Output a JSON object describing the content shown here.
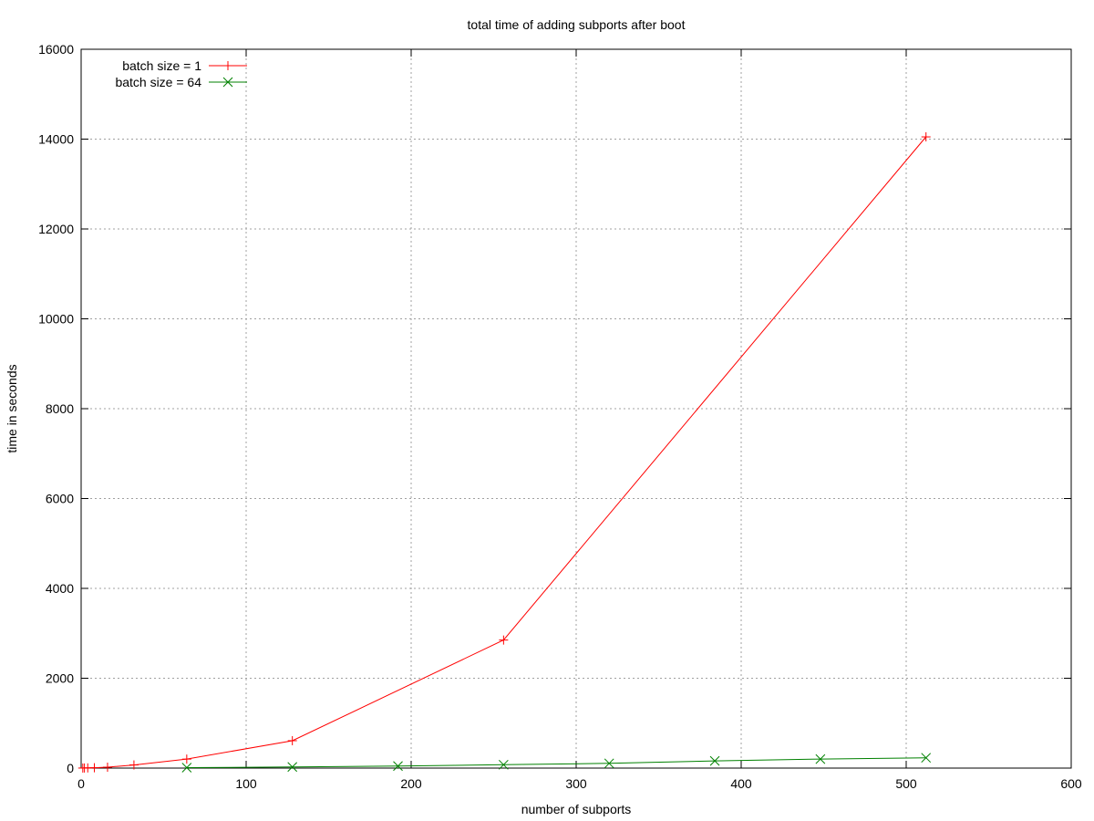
{
  "chart_data": {
    "type": "line",
    "title": "total time of adding subports after boot",
    "xlabel": "number of subports",
    "ylabel": "time in seconds",
    "xlim": [
      0,
      600
    ],
    "ylim": [
      0,
      16000
    ],
    "xticks": [
      0,
      100,
      200,
      300,
      400,
      500,
      600
    ],
    "yticks": [
      0,
      2000,
      4000,
      6000,
      8000,
      10000,
      12000,
      14000,
      16000
    ],
    "grid": true,
    "legend_position": "top-left",
    "series": [
      {
        "name": "batch size = 1",
        "color": "#ff0000",
        "marker": "plus",
        "x": [
          1,
          2,
          4,
          8,
          16,
          32,
          64,
          128,
          256,
          512
        ],
        "y": [
          1,
          2,
          4,
          8,
          20,
          70,
          200,
          610,
          2850,
          14050
        ]
      },
      {
        "name": "batch size = 64",
        "color": "#008000",
        "marker": "cross",
        "x": [
          64,
          128,
          192,
          256,
          320,
          384,
          448,
          512
        ],
        "y": [
          10,
          25,
          45,
          75,
          105,
          160,
          200,
          230
        ]
      }
    ]
  }
}
